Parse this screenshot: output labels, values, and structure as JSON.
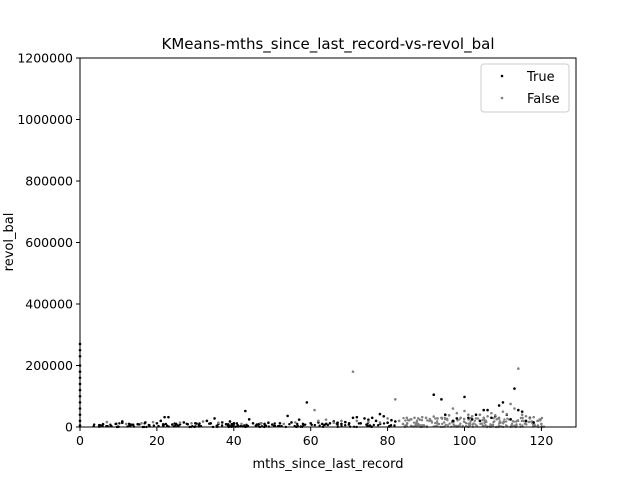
{
  "chart_data": {
    "type": "scatter",
    "title": "KMeans-mths_since_last_record-vs-revol_bal",
    "xlabel": "mths_since_last_record",
    "ylabel": "revol_bal",
    "xlim": [
      0,
      129
    ],
    "ylim": [
      0,
      1200000
    ],
    "x_ticks": [
      0,
      20,
      40,
      60,
      80,
      100,
      120
    ],
    "y_ticks": [
      0,
      200000,
      400000,
      600000,
      800000,
      1000000,
      1200000
    ],
    "x_tick_labels": [
      "0",
      "20",
      "40",
      "60",
      "80",
      "100",
      "120"
    ],
    "y_tick_labels": [
      "0",
      "200000",
      "400000",
      "600000",
      "800000",
      "1000000",
      "1200000"
    ],
    "grid": false,
    "legend_position": "top-right",
    "series": [
      {
        "name": "True",
        "color": "#000000",
        "points": [
          [
            0,
            270000
          ],
          [
            0,
            250000
          ],
          [
            0,
            230000
          ],
          [
            0,
            200000
          ],
          [
            0,
            180000
          ],
          [
            0,
            160000
          ],
          [
            0,
            140000
          ],
          [
            0,
            120000
          ],
          [
            0,
            100000
          ],
          [
            0,
            80000
          ],
          [
            0,
            60000
          ],
          [
            0,
            40000
          ],
          [
            0,
            20000
          ],
          [
            0,
            5000
          ],
          [
            5,
            6000
          ],
          [
            6,
            9000
          ],
          [
            8,
            3000
          ],
          [
            11,
            18000
          ],
          [
            11,
            14000
          ],
          [
            13,
            4000
          ],
          [
            15,
            9000
          ],
          [
            17,
            15000
          ],
          [
            18,
            6000
          ],
          [
            20,
            12000
          ],
          [
            21,
            20000
          ],
          [
            22,
            32000
          ],
          [
            23,
            32000
          ],
          [
            24,
            8000
          ],
          [
            25,
            10000
          ],
          [
            27,
            15000
          ],
          [
            28,
            9000
          ],
          [
            30,
            12000
          ],
          [
            31,
            8000
          ],
          [
            33,
            20000
          ],
          [
            34,
            12000
          ],
          [
            35,
            28000
          ],
          [
            36,
            10000
          ],
          [
            37,
            15000
          ],
          [
            38,
            9000
          ],
          [
            39,
            18000
          ],
          [
            40,
            12000
          ],
          [
            41,
            6000
          ],
          [
            43,
            52000
          ],
          [
            44,
            25000
          ],
          [
            45,
            12000
          ],
          [
            46,
            8000
          ],
          [
            48,
            10000
          ],
          [
            49,
            14000
          ],
          [
            50,
            8000
          ],
          [
            52,
            12000
          ],
          [
            54,
            36000
          ],
          [
            55,
            15000
          ],
          [
            57,
            24000
          ],
          [
            58,
            10000
          ],
          [
            59,
            80000
          ],
          [
            60,
            12000
          ],
          [
            62,
            15000
          ],
          [
            63,
            10000
          ],
          [
            65,
            12000
          ],
          [
            66,
            18000
          ],
          [
            67,
            14000
          ],
          [
            68,
            10000
          ],
          [
            69,
            16000
          ],
          [
            70,
            12000
          ],
          [
            71,
            30000
          ],
          [
            72,
            32000
          ],
          [
            73,
            12000
          ],
          [
            74,
            28000
          ],
          [
            75,
            24000
          ],
          [
            76,
            30000
          ],
          [
            77,
            20000
          ],
          [
            78,
            42000
          ],
          [
            79,
            35000
          ],
          [
            80,
            14000
          ],
          [
            81,
            22000
          ],
          [
            82,
            18000
          ],
          [
            92,
            105000
          ],
          [
            94,
            90000
          ],
          [
            95,
            40000
          ],
          [
            97,
            20000
          ],
          [
            98,
            28000
          ],
          [
            100,
            98000
          ],
          [
            101,
            30000
          ],
          [
            102,
            25000
          ],
          [
            103,
            40000
          ],
          [
            104,
            20000
          ],
          [
            105,
            55000
          ],
          [
            106,
            55000
          ],
          [
            107,
            30000
          ],
          [
            108,
            35000
          ],
          [
            109,
            70000
          ],
          [
            110,
            80000
          ],
          [
            111,
            40000
          ],
          [
            112,
            25000
          ],
          [
            113,
            125000
          ],
          [
            114,
            55000
          ],
          [
            115,
            50000
          ],
          [
            116,
            20000
          ],
          [
            117,
            30000
          ],
          [
            118,
            15000
          ]
        ]
      },
      {
        "name": "False",
        "color": "#808080",
        "points": [
          [
            7,
            16000
          ],
          [
            12,
            10000
          ],
          [
            16,
            12000
          ],
          [
            19,
            16000
          ],
          [
            26,
            14000
          ],
          [
            29,
            12000
          ],
          [
            32,
            18000
          ],
          [
            36,
            14000
          ],
          [
            42,
            10000
          ],
          [
            47,
            12000
          ],
          [
            53,
            10000
          ],
          [
            56,
            15000
          ],
          [
            61,
            55000
          ],
          [
            62,
            20000
          ],
          [
            64,
            24000
          ],
          [
            66,
            14000
          ],
          [
            68,
            20000
          ],
          [
            71,
            180000
          ],
          [
            72,
            20000
          ],
          [
            75,
            16000
          ],
          [
            78,
            15000
          ],
          [
            80,
            28000
          ],
          [
            82,
            90000
          ],
          [
            83,
            20000
          ],
          [
            85,
            30000
          ],
          [
            86,
            25000
          ],
          [
            87,
            30000
          ],
          [
            88,
            28000
          ],
          [
            89,
            32000
          ],
          [
            90,
            30000
          ],
          [
            91,
            26000
          ],
          [
            92,
            34000
          ],
          [
            93,
            28000
          ],
          [
            94,
            30000
          ],
          [
            95,
            26000
          ],
          [
            96,
            38000
          ],
          [
            97,
            60000
          ],
          [
            98,
            45000
          ],
          [
            99,
            30000
          ],
          [
            100,
            52000
          ],
          [
            101,
            40000
          ],
          [
            102,
            35000
          ],
          [
            103,
            28000
          ],
          [
            104,
            40000
          ],
          [
            105,
            30000
          ],
          [
            106,
            35000
          ],
          [
            107,
            45000
          ],
          [
            108,
            38000
          ],
          [
            109,
            30000
          ],
          [
            110,
            50000
          ],
          [
            111,
            42000
          ],
          [
            112,
            75000
          ],
          [
            113,
            60000
          ],
          [
            114,
            190000
          ],
          [
            115,
            40000
          ],
          [
            116,
            35000
          ],
          [
            117,
            28000
          ],
          [
            118,
            32000
          ],
          [
            119,
            20000
          ],
          [
            120,
            10000
          ]
        ]
      }
    ],
    "dense_bands": [
      {
        "series": "True",
        "x_start": 3,
        "x_end": 84,
        "y_min": 0,
        "y_max": 12000,
        "count": 160
      },
      {
        "series": "False",
        "x_start": 84,
        "x_end": 121,
        "y_min": 0,
        "y_max": 30000,
        "count": 220
      }
    ]
  }
}
